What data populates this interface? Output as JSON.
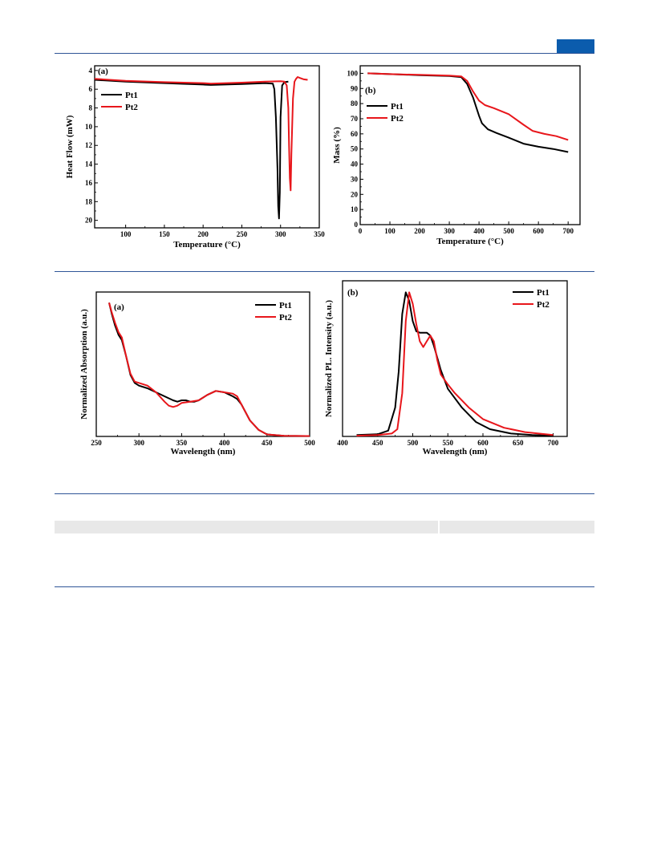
{
  "colors": {
    "rule": "#2f5597",
    "badge": "#0b5cad",
    "pt1": "#000000",
    "pt2": "#e8161b",
    "table_band": "#e8e8e8"
  },
  "chart_data": [
    {
      "type": "line",
      "panel": "(a)",
      "xlabel": "Temperature (°C)",
      "ylabel": "Heat Flow (mW)",
      "xlim": [
        60,
        350
      ],
      "ylim": [
        3.5,
        20.8
      ],
      "y_inverted": true,
      "xticks": [
        100,
        150,
        200,
        250,
        300,
        350
      ],
      "yticks": [
        4,
        6,
        8,
        10,
        12,
        14,
        16,
        18,
        20
      ],
      "legend": "upper-left",
      "series": [
        {
          "name": "Pt1",
          "color": "#000000",
          "x": [
            60,
            100,
            150,
            200,
            210,
            250,
            280,
            290,
            292,
            294,
            296,
            297,
            298,
            299,
            300,
            302,
            305,
            310
          ],
          "y": [
            5.0,
            5.2,
            5.35,
            5.5,
            5.55,
            5.45,
            5.35,
            5.4,
            6.0,
            9.0,
            14.5,
            18.5,
            19.8,
            17.0,
            9.0,
            5.6,
            5.25,
            5.2
          ]
        },
        {
          "name": "Pt2",
          "color": "#e8161b",
          "x": [
            60,
            100,
            150,
            200,
            210,
            250,
            280,
            300,
            305,
            308,
            310,
            311,
            312,
            313,
            314,
            316,
            318,
            320,
            322,
            325,
            330,
            335
          ],
          "y": [
            4.9,
            5.1,
            5.25,
            5.35,
            5.4,
            5.3,
            5.2,
            5.15,
            5.2,
            5.6,
            8.0,
            12.0,
            15.5,
            16.8,
            13.0,
            7.0,
            5.2,
            4.9,
            4.7,
            4.8,
            4.95,
            5.0
          ]
        }
      ]
    },
    {
      "type": "line",
      "panel": "(b)",
      "xlabel": "Temperature (°C)",
      "ylabel": "Mass (%)",
      "xlim": [
        0,
        740
      ],
      "ylim": [
        0,
        105
      ],
      "xticks": [
        0,
        100,
        200,
        300,
        400,
        500,
        600,
        700
      ],
      "yticks": [
        0,
        10,
        20,
        30,
        40,
        50,
        60,
        70,
        80,
        90,
        100
      ],
      "legend": "left",
      "series": [
        {
          "name": "Pt1",
          "color": "#000000",
          "x": [
            25,
            100,
            200,
            300,
            340,
            360,
            380,
            400,
            410,
            430,
            460,
            500,
            550,
            600,
            650,
            700
          ],
          "y": [
            100,
            99.5,
            98.8,
            98.2,
            97.5,
            93,
            84,
            72,
            67,
            63,
            60.5,
            57.5,
            53.5,
            51.5,
            50,
            48
          ]
        },
        {
          "name": "Pt2",
          "color": "#e8161b",
          "x": [
            25,
            100,
            200,
            300,
            340,
            360,
            380,
            400,
            420,
            450,
            500,
            550,
            580,
            620,
            660,
            700
          ],
          "y": [
            100,
            99.5,
            99,
            98.5,
            98,
            95,
            88,
            82,
            79,
            77,
            73,
            66,
            62,
            60,
            58.5,
            56
          ]
        }
      ]
    },
    {
      "type": "line",
      "panel": "(a)",
      "xlabel": "Wavelength (nm)",
      "ylabel": "Normalized Absorption (a.u.)",
      "xlim": [
        250,
        500
      ],
      "ylim": [
        0,
        1.08
      ],
      "xticks": [
        250,
        300,
        350,
        400,
        450,
        500
      ],
      "yticks": [],
      "legend": "top-right",
      "series": [
        {
          "name": "Pt1",
          "color": "#000000",
          "x": [
            265,
            268,
            272,
            276,
            280,
            285,
            290,
            295,
            300,
            310,
            320,
            330,
            340,
            345,
            350,
            355,
            360,
            365,
            370,
            380,
            390,
            400,
            410,
            415,
            420,
            425,
            430,
            440,
            450,
            470,
            500
          ],
          "y": [
            1.0,
            0.92,
            0.83,
            0.76,
            0.72,
            0.6,
            0.46,
            0.4,
            0.38,
            0.36,
            0.33,
            0.3,
            0.27,
            0.26,
            0.27,
            0.27,
            0.26,
            0.26,
            0.27,
            0.31,
            0.34,
            0.33,
            0.3,
            0.28,
            0.24,
            0.18,
            0.12,
            0.05,
            0.015,
            0.005,
            0.003
          ]
        },
        {
          "name": "Pt2",
          "color": "#e8161b",
          "x": [
            265,
            268,
            272,
            276,
            280,
            285,
            290,
            295,
            300,
            310,
            320,
            330,
            335,
            340,
            345,
            350,
            360,
            370,
            380,
            390,
            400,
            410,
            415,
            420,
            425,
            430,
            440,
            450,
            470,
            500
          ],
          "y": [
            1.0,
            0.93,
            0.85,
            0.78,
            0.74,
            0.6,
            0.47,
            0.41,
            0.4,
            0.38,
            0.33,
            0.26,
            0.23,
            0.22,
            0.23,
            0.25,
            0.26,
            0.27,
            0.31,
            0.34,
            0.33,
            0.32,
            0.3,
            0.24,
            0.18,
            0.12,
            0.05,
            0.015,
            0.005,
            0.003
          ]
        }
      ]
    },
    {
      "type": "line",
      "panel": "(b)",
      "xlabel": "Wavelength (nm)",
      "ylabel": "Normalized PL. Intensity (a.u.)",
      "xlim": [
        400,
        720
      ],
      "ylim": [
        0,
        1.08
      ],
      "xticks": [
        400,
        450,
        500,
        550,
        600,
        650,
        700
      ],
      "yticks": [],
      "legend": "top-right",
      "series": [
        {
          "name": "Pt1",
          "color": "#000000",
          "x": [
            420,
            450,
            465,
            475,
            480,
            485,
            490,
            495,
            500,
            505,
            510,
            520,
            525,
            530,
            540,
            550,
            570,
            590,
            610,
            640,
            670,
            700
          ],
          "y": [
            0.01,
            0.015,
            0.04,
            0.2,
            0.45,
            0.85,
            1.0,
            0.94,
            0.8,
            0.73,
            0.72,
            0.72,
            0.7,
            0.63,
            0.46,
            0.33,
            0.2,
            0.1,
            0.05,
            0.02,
            0.01,
            0.005
          ]
        },
        {
          "name": "Pt2",
          "color": "#e8161b",
          "x": [
            420,
            450,
            470,
            478,
            485,
            490,
            495,
            500,
            505,
            510,
            515,
            520,
            525,
            530,
            535,
            540,
            550,
            560,
            580,
            600,
            630,
            660,
            700
          ],
          "y": [
            0.005,
            0.01,
            0.02,
            0.05,
            0.3,
            0.8,
            1.0,
            0.92,
            0.78,
            0.66,
            0.62,
            0.66,
            0.7,
            0.66,
            0.53,
            0.43,
            0.36,
            0.3,
            0.2,
            0.12,
            0.06,
            0.03,
            0.01
          ]
        }
      ]
    }
  ]
}
